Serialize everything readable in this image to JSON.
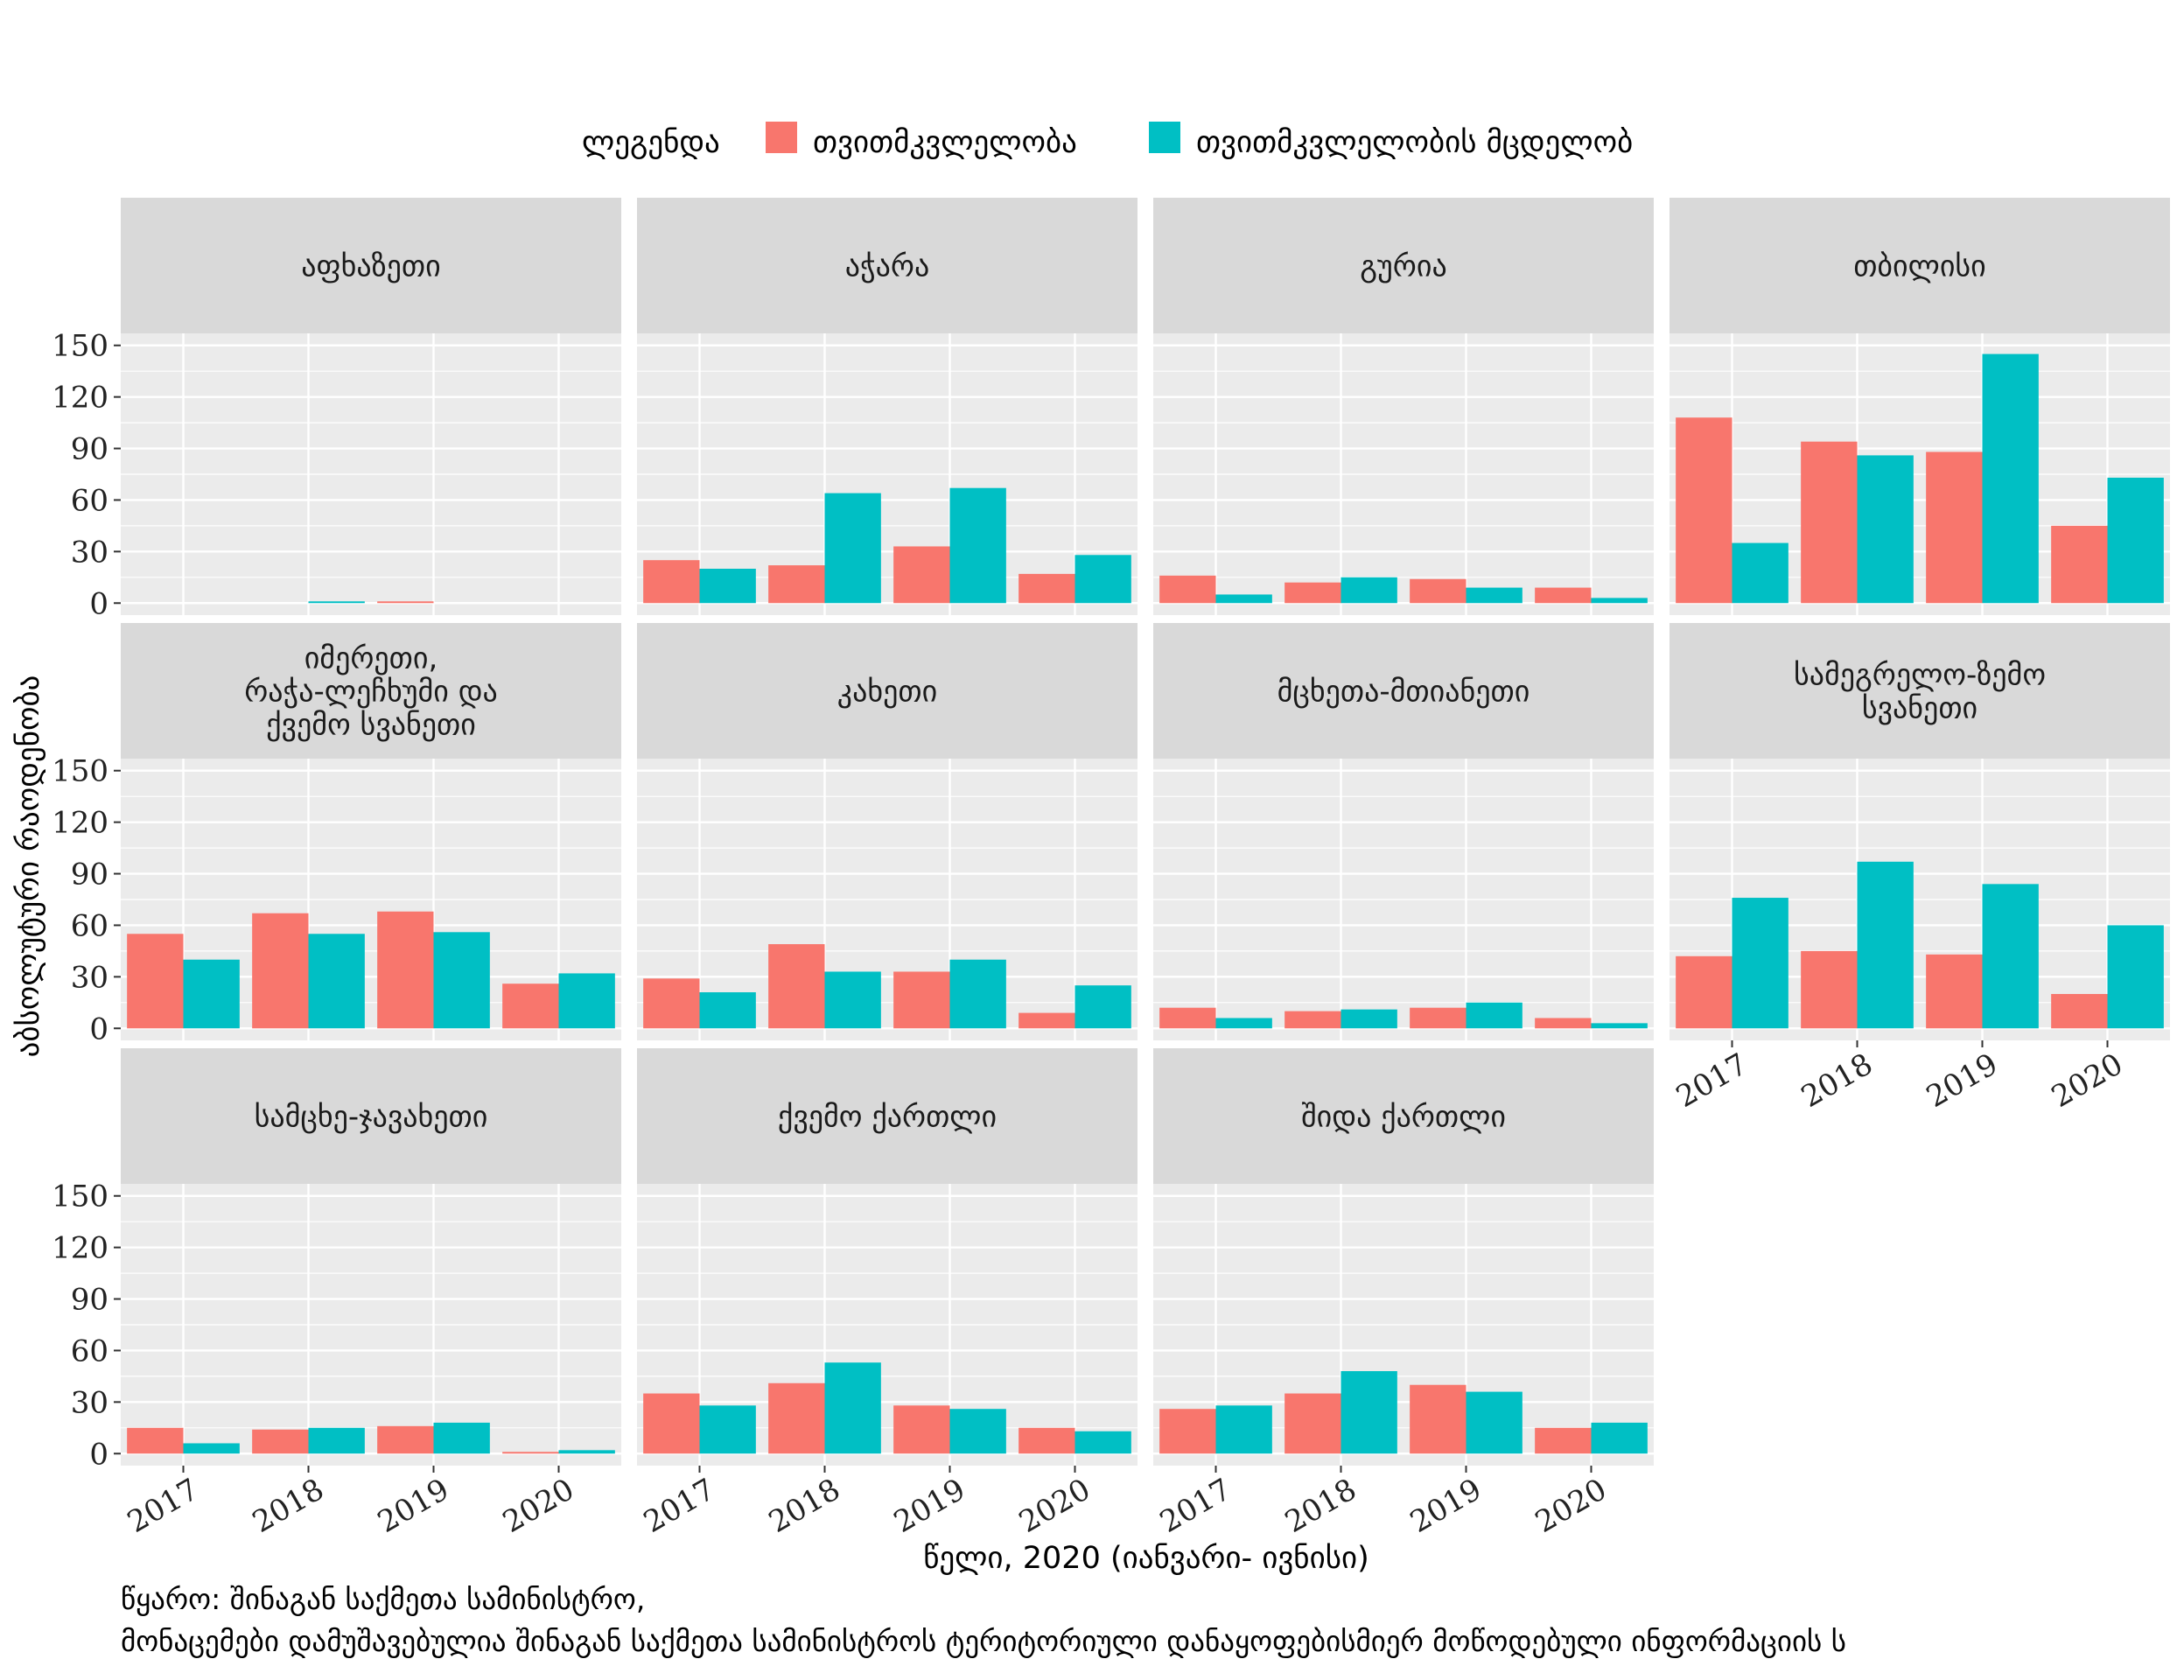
{
  "chart_data": {
    "type": "bar",
    "legend": {
      "title": "ლეგენდა",
      "placement": "top",
      "entries": [
        {
          "name": "თვითმკვლელობა",
          "color": "#F8766D"
        },
        {
          "name": "თვითმკვლელობის მცდელობ",
          "color": "#00BFC4"
        }
      ]
    },
    "categories": [
      "2017",
      "2018",
      "2019",
      "2020"
    ],
    "ylabel": "აბსოლუტური რაოდენობა",
    "xlabel": "წელი, 2020 (იანვარი- ივნისი)",
    "yticks": [
      0,
      30,
      60,
      90,
      120,
      150
    ],
    "ylim": [
      -7,
      157
    ],
    "grid": true,
    "panels": [
      {
        "title": [
          "აფხაზეთი"
        ],
        "series": [
          {
            "values": [
              0,
              0,
              1,
              0
            ]
          },
          {
            "values": [
              0,
              1,
              0,
              0
            ]
          }
        ]
      },
      {
        "title": [
          "აჭარა"
        ],
        "series": [
          {
            "values": [
              25,
              22,
              33,
              17
            ]
          },
          {
            "values": [
              20,
              64,
              67,
              28
            ]
          }
        ]
      },
      {
        "title": [
          "გურია"
        ],
        "series": [
          {
            "values": [
              16,
              12,
              14,
              9
            ]
          },
          {
            "values": [
              5,
              15,
              9,
              3
            ]
          }
        ]
      },
      {
        "title": [
          "თბილისი"
        ],
        "series": [
          {
            "values": [
              108,
              94,
              88,
              45
            ]
          },
          {
            "values": [
              35,
              86,
              145,
              73
            ]
          }
        ]
      },
      {
        "title": [
          "იმერეთი,",
          "რაჭა-ლეჩხუმი და",
          "ქვემო სვანეთი"
        ],
        "series": [
          {
            "values": [
              55,
              67,
              68,
              26
            ]
          },
          {
            "values": [
              40,
              55,
              56,
              32
            ]
          }
        ]
      },
      {
        "title": [
          "კახეთი"
        ],
        "series": [
          {
            "values": [
              29,
              49,
              33,
              9
            ]
          },
          {
            "values": [
              21,
              33,
              40,
              25
            ]
          }
        ]
      },
      {
        "title": [
          "მცხეთა-მთიანეთი"
        ],
        "series": [
          {
            "values": [
              12,
              10,
              12,
              6
            ]
          },
          {
            "values": [
              6,
              11,
              15,
              3
            ]
          }
        ]
      },
      {
        "title": [
          "სამეგრელო-ზემო",
          "სვანეთი"
        ],
        "series": [
          {
            "values": [
              42,
              45,
              43,
              20
            ]
          },
          {
            "values": [
              76,
              97,
              84,
              60
            ]
          }
        ]
      },
      {
        "title": [
          "სამცხე-ჯავახეთი"
        ],
        "series": [
          {
            "values": [
              15,
              14,
              16,
              1
            ]
          },
          {
            "values": [
              6,
              15,
              18,
              2
            ]
          }
        ]
      },
      {
        "title": [
          "ქვემო ქართლი"
        ],
        "series": [
          {
            "values": [
              35,
              41,
              28,
              15
            ]
          },
          {
            "values": [
              28,
              53,
              26,
              13
            ]
          }
        ]
      },
      {
        "title": [
          "შიდა ქართლი"
        ],
        "series": [
          {
            "values": [
              26,
              35,
              40,
              15
            ]
          },
          {
            "values": [
              28,
              48,
              36,
              18
            ]
          }
        ]
      }
    ]
  },
  "caption": {
    "line1": "წყარო: შინაგან საქმეთა სამინისტრო,",
    "line2": "მონაცემები დამუშავებულია შინაგან საქმეთა სამინისტროს ტერიტორიული დანაყოფებისმიერ მოწოდებული ინფორმაციის ს"
  }
}
